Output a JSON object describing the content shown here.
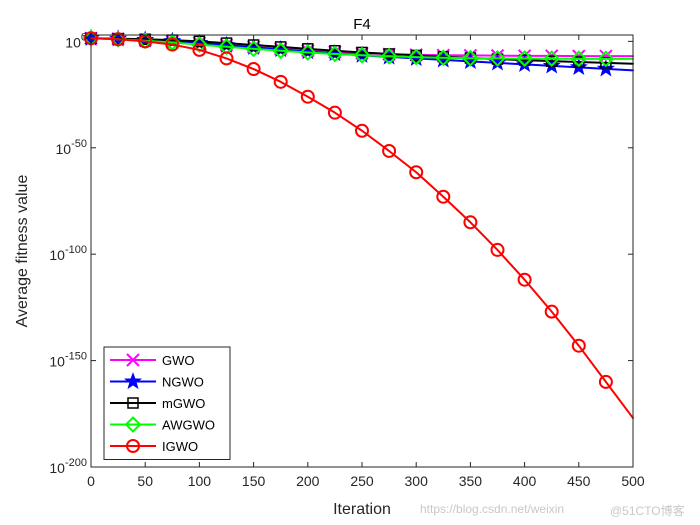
{
  "chart_data": {
    "type": "line",
    "title": "F4",
    "xlabel": "Iteration",
    "ylabel": "Average fitness value",
    "xlim": [
      0,
      500
    ],
    "xticks": [
      0,
      50,
      100,
      150,
      200,
      250,
      300,
      350,
      400,
      450,
      500
    ],
    "yscale": "log",
    "ylim_log10": [
      -200,
      3
    ],
    "yticks_log10": [
      0,
      -50,
      -100,
      -150,
      -200
    ],
    "ytick_labels": [
      {
        "base": "10",
        "exp": "0"
      },
      {
        "base": "10",
        "exp": "-50"
      },
      {
        "base": "10",
        "exp": "-100"
      },
      {
        "base": "10",
        "exp": "-150"
      },
      {
        "base": "10",
        "exp": "-200"
      }
    ],
    "legend_position": "bottom-left",
    "x": [
      0,
      25,
      50,
      75,
      100,
      125,
      150,
      175,
      200,
      225,
      250,
      275,
      300,
      325,
      350,
      375,
      400,
      425,
      450,
      475,
      500
    ],
    "series": [
      {
        "name": "GWO",
        "color": "#ff00ff",
        "marker": "x",
        "log10_values": [
          1.5,
          1.2,
          0.6,
          0,
          -0.8,
          -1.7,
          -2.6,
          -3.5,
          -4.3,
          -5.0,
          -5.6,
          -6.0,
          -6.3,
          -6.5,
          -6.6,
          -6.7,
          -6.8,
          -6.8,
          -6.9,
          -6.9,
          -6.9
        ]
      },
      {
        "name": "NGWO",
        "color": "#0000ff",
        "marker": "star",
        "log10_values": [
          1.5,
          1.2,
          0.7,
          0.1,
          -0.8,
          -1.8,
          -2.8,
          -3.8,
          -4.8,
          -5.7,
          -6.5,
          -7.3,
          -8.0,
          -8.7,
          -9.4,
          -10.1,
          -10.8,
          -11.5,
          -12.2,
          -12.9,
          -13.6
        ]
      },
      {
        "name": "mGWO",
        "color": "#000000",
        "marker": "square",
        "log10_values": [
          1.5,
          1.3,
          1.0,
          0.6,
          0.0,
          -0.8,
          -1.7,
          -2.6,
          -3.5,
          -4.4,
          -5.2,
          -5.9,
          -6.6,
          -7.2,
          -7.8,
          -8.3,
          -8.8,
          -9.3,
          -9.7,
          -10.1,
          -10.5
        ]
      },
      {
        "name": "AWGWO",
        "color": "#00ff00",
        "marker": "diamond",
        "log10_values": [
          1.5,
          1.0,
          0.3,
          -0.5,
          -1.5,
          -2.5,
          -3.5,
          -4.4,
          -5.2,
          -5.9,
          -6.5,
          -7.0,
          -7.4,
          -7.7,
          -7.9,
          -8.0,
          -8.1,
          -8.1,
          -8.2,
          -8.2,
          -8.2
        ]
      },
      {
        "name": "IGWO",
        "color": "#ff0000",
        "marker": "circle",
        "log10_values": [
          1.5,
          1.0,
          0.0,
          -1.5,
          -4.0,
          -8.0,
          -13.0,
          -19.0,
          -26.0,
          -33.5,
          -42.0,
          -51.5,
          -61.5,
          -73.0,
          -85.0,
          -98.0,
          -112.0,
          -127.0,
          -143.0,
          -160.0,
          -177.0
        ]
      }
    ]
  },
  "watermarks": {
    "blog": "https://blog.csdn.net/weixin",
    "site": "@51CTO博客"
  }
}
